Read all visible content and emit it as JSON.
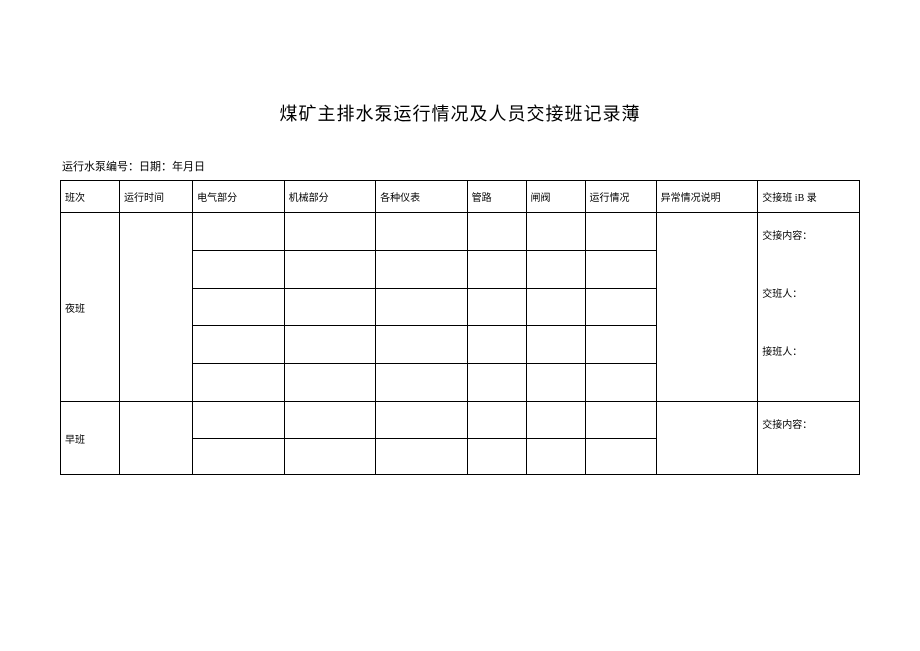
{
  "title": "煤矿主排水泵运行情况及人员交接班记录薄",
  "subtitle": "运行水泵编号：日期：年月日",
  "headers": {
    "shift": "班次",
    "runtime": "运行时间",
    "elec": "电气部分",
    "mech": "机械部分",
    "meter": "各种仪表",
    "pipe": "管路",
    "valve": "闸阀",
    "status": "运行情况",
    "abn": "异常情况说明",
    "hand": "交接班 iB 录"
  },
  "shifts": {
    "night": "夜班",
    "morning": "早班"
  },
  "notes": {
    "content": "交接内容：",
    "handover": "交班人：",
    "takeover": "接班人："
  }
}
